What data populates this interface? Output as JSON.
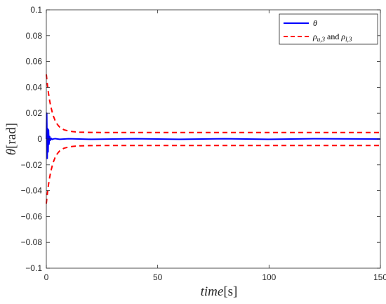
{
  "chart_data": {
    "type": "line",
    "title": "",
    "xlabel_main": "time",
    "xlabel_unit": "[s]",
    "ylabel_main": "θ",
    "ylabel_unit": "[rad]",
    "xlim": [
      0,
      150
    ],
    "ylim": [
      -0.1,
      0.1
    ],
    "xticks": [
      0,
      50,
      100,
      150
    ],
    "xtick_labels": [
      "0",
      "50",
      "100",
      "150"
    ],
    "yticks": [
      -0.1,
      -0.08,
      -0.06,
      -0.04,
      -0.02,
      0,
      0.02,
      0.04,
      0.06,
      0.08,
      0.1
    ],
    "ytick_labels": [
      "−0.1",
      "−0.08",
      "−0.06",
      "−0.04",
      "−0.02",
      "0",
      "0.02",
      "0.04",
      "0.06",
      "0.08",
      "0.1"
    ],
    "grid": false,
    "legend_position": "top-right",
    "legend_entries": [
      {
        "main": "θ",
        "sub": "",
        "text_after": ""
      },
      {
        "main": "ρ",
        "sub": "u,3",
        "text_after": " and ",
        "main2": "ρ",
        "sub2": "l,3"
      }
    ],
    "series": [
      {
        "name": "θ",
        "color": "#0000ff",
        "style": "solid",
        "x": [
          0,
          0.2,
          0.4,
          0.6,
          0.8,
          1.0,
          1.2,
          1.5,
          1.8,
          2.2,
          2.6,
          3.0,
          4.0,
          6,
          10,
          20,
          40,
          60,
          80,
          100,
          120,
          150
        ],
        "y": [
          0,
          0.02,
          -0.015,
          0.008,
          -0.01,
          0.007,
          -0.004,
          0.002,
          -0.001,
          0.0005,
          -0.0003,
          0,
          0.0003,
          -0.0002,
          0.0002,
          -0.0002,
          0.0002,
          -0.0002,
          0.0002,
          -0.0002,
          0.0002,
          0
        ]
      },
      {
        "name": "ρ_u,3",
        "color": "#ff0000",
        "style": "dashed",
        "x": [
          0,
          0.5,
          1,
          1.5,
          2,
          3,
          4,
          5,
          6,
          7,
          8,
          10,
          12,
          15,
          20,
          30,
          50,
          100,
          150
        ],
        "y": [
          0.05,
          0.0418,
          0.0351,
          0.0297,
          0.0252,
          0.0185,
          0.0141,
          0.0112,
          0.0092,
          0.008,
          0.0071,
          0.0062,
          0.0057,
          0.0053,
          0.0051,
          0.005,
          0.005,
          0.005,
          0.005
        ]
      },
      {
        "name": "ρ_l,3",
        "color": "#ff0000",
        "style": "dashed",
        "x": [
          0,
          0.5,
          1,
          1.5,
          2,
          3,
          4,
          5,
          6,
          7,
          8,
          10,
          12,
          15,
          20,
          30,
          50,
          100,
          150
        ],
        "y": [
          -0.05,
          -0.0418,
          -0.0351,
          -0.0297,
          -0.0252,
          -0.0185,
          -0.0141,
          -0.0112,
          -0.0092,
          -0.008,
          -0.0071,
          -0.0062,
          -0.0057,
          -0.0053,
          -0.0051,
          -0.005,
          -0.005,
          -0.005,
          -0.005
        ]
      }
    ]
  }
}
